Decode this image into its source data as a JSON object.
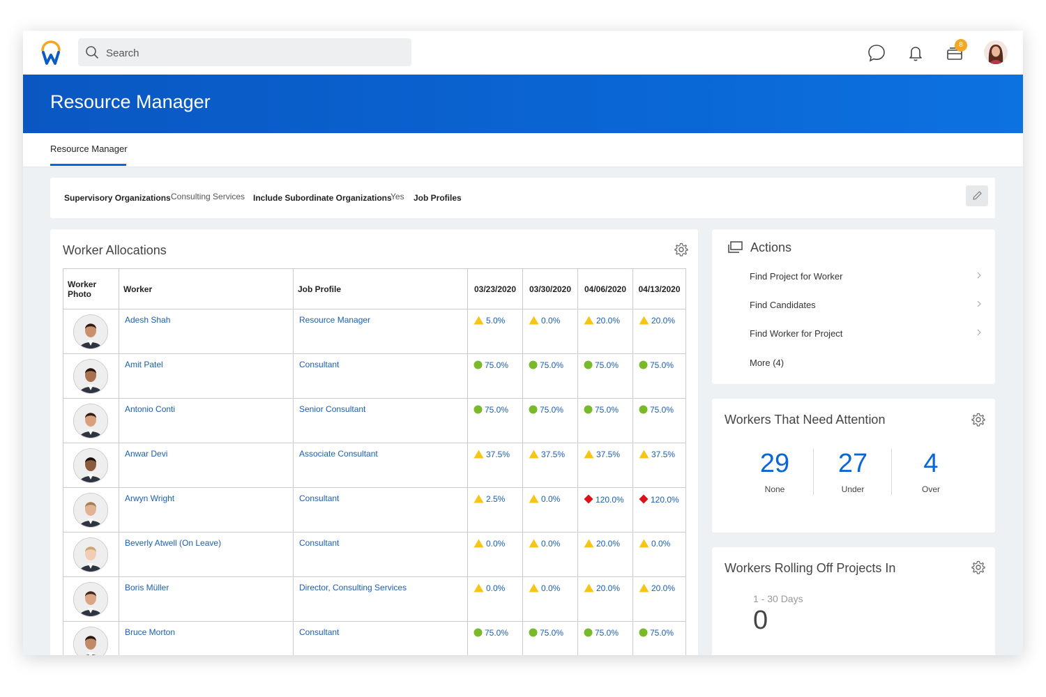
{
  "header": {
    "search_placeholder": "Search",
    "notification_badge": "8"
  },
  "banner": {
    "title": "Resource Manager"
  },
  "tabs": [
    {
      "label": "Resource Manager",
      "active": true
    }
  ],
  "filters": [
    {
      "key": "Supervisory Organizations",
      "value": "Consulting Services"
    },
    {
      "key": "Include Subordinate Organizations",
      "value": "Yes"
    },
    {
      "key": "Job Profiles",
      "value": ""
    }
  ],
  "worker_allocations": {
    "title": "Worker Allocations",
    "columns": [
      "Worker Photo",
      "Worker",
      "Job Profile",
      "03/23/2020",
      "03/30/2020",
      "04/06/2020",
      "04/13/2020"
    ],
    "rows": [
      {
        "worker": "Adesh Shah",
        "job": "Resource Manager",
        "alloc": [
          [
            "warn",
            "5.0%"
          ],
          [
            "warn",
            "0.0%"
          ],
          [
            "warn",
            "20.0%"
          ],
          [
            "warn",
            "20.0%"
          ]
        ]
      },
      {
        "worker": "Amit Patel",
        "job": "Consultant",
        "alloc": [
          [
            "ok",
            "75.0%"
          ],
          [
            "ok",
            "75.0%"
          ],
          [
            "ok",
            "75.0%"
          ],
          [
            "ok",
            "75.0%"
          ]
        ]
      },
      {
        "worker": "Antonio Conti",
        "job": "Senior Consultant",
        "alloc": [
          [
            "ok",
            "75.0%"
          ],
          [
            "ok",
            "75.0%"
          ],
          [
            "ok",
            "75.0%"
          ],
          [
            "ok",
            "75.0%"
          ]
        ]
      },
      {
        "worker": "Anwar Devi",
        "job": "Associate Consultant",
        "alloc": [
          [
            "warn",
            "37.5%"
          ],
          [
            "warn",
            "37.5%"
          ],
          [
            "warn",
            "37.5%"
          ],
          [
            "warn",
            "37.5%"
          ]
        ]
      },
      {
        "worker": "Arwyn Wright",
        "job": "Consultant",
        "alloc": [
          [
            "warn",
            "2.5%"
          ],
          [
            "warn",
            "0.0%"
          ],
          [
            "over",
            "120.0%"
          ],
          [
            "over",
            "120.0%"
          ]
        ]
      },
      {
        "worker": "Beverly Atwell (On Leave)",
        "job": "Consultant",
        "alloc": [
          [
            "warn",
            "0.0%"
          ],
          [
            "warn",
            "0.0%"
          ],
          [
            "warn",
            "20.0%"
          ],
          [
            "warn",
            "0.0%"
          ]
        ]
      },
      {
        "worker": "Boris Müller",
        "job": "Director, Consulting Services",
        "alloc": [
          [
            "warn",
            "0.0%"
          ],
          [
            "warn",
            "0.0%"
          ],
          [
            "warn",
            "20.0%"
          ],
          [
            "warn",
            "20.0%"
          ]
        ]
      },
      {
        "worker": "Bruce Morton",
        "job": "Consultant",
        "alloc": [
          [
            "ok",
            "75.0%"
          ],
          [
            "ok",
            "75.0%"
          ],
          [
            "ok",
            "75.0%"
          ],
          [
            "ok",
            "75.0%"
          ]
        ]
      }
    ]
  },
  "actions": {
    "title": "Actions",
    "items": [
      "Find Project for Worker",
      "Find Candidates",
      "Find Worker for Project",
      "More (4)"
    ]
  },
  "attention": {
    "title": "Workers That Need Attention",
    "stats": [
      {
        "value": "29",
        "label": "None"
      },
      {
        "value": "27",
        "label": "Under"
      },
      {
        "value": "4",
        "label": "Over"
      }
    ]
  },
  "rolling_off": {
    "title": "Workers Rolling Off Projects In",
    "range": "1 - 30 Days",
    "value": "0"
  },
  "colors": {
    "brand": "#0a66d4",
    "ok": "#7ab929",
    "warn": "#f5c518",
    "over": "#e0101a",
    "link": "#1a5fb4"
  }
}
